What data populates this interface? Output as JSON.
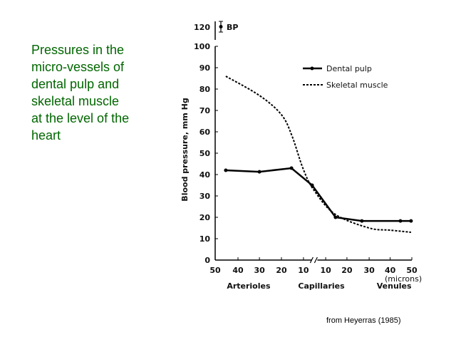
{
  "slide": {
    "title_lines": [
      "Pressures in the",
      "micro-vessels of",
      "dental pulp and",
      "skeletal muscle",
      "at the level of the",
      "heart"
    ],
    "title_color": "#006600",
    "source": "from Heyerras (1985)"
  },
  "chart_data": {
    "type": "line",
    "title": "Pressures in the micro-vessels of dental pulp and skeletal muscle at the level of the heart",
    "ylabel": "Blood pressure, mm Hg",
    "xlabel": "(microns)",
    "ylim": [
      0,
      100
    ],
    "yticks": [
      0,
      10,
      20,
      30,
      40,
      50,
      60,
      70,
      80,
      90,
      100
    ],
    "ybreak_tick": 120,
    "x_position_range": [
      0,
      10
    ],
    "xticks": [
      {
        "label": "50",
        "pos": 0
      },
      {
        "label": "40",
        "pos": 1.16
      },
      {
        "label": "30",
        "pos": 2.25
      },
      {
        "label": "20",
        "pos": 3.37
      },
      {
        "label": "10",
        "pos": 4.49
      },
      {
        "label": "10",
        "pos": 5.62
      },
      {
        "label": "20",
        "pos": 6.7
      },
      {
        "label": "30",
        "pos": 7.83
      },
      {
        "label": "40",
        "pos": 8.9
      },
      {
        "label": "50",
        "pos": 10
      }
    ],
    "x_break_pos": 5.05,
    "segments": [
      {
        "label": "Arterioles",
        "pos": 1.7
      },
      {
        "label": "Capillaries",
        "pos": 5.4
      },
      {
        "label": "Venules",
        "pos": 9.1
      }
    ],
    "bp_marker": {
      "label": "BP",
      "value": 120,
      "error": 5
    },
    "legend_position": "top-right",
    "series": [
      {
        "name": "Dental pulp",
        "style": "solid-markers",
        "color": "#000000",
        "x": [
          0.54,
          2.25,
          3.88,
          4.93,
          6.12,
          7.46,
          9.42,
          9.96
        ],
        "y": [
          42,
          41.3,
          43,
          35,
          20,
          18.3,
          18.3,
          18.3
        ]
      },
      {
        "name": "Skeletal muscle",
        "style": "dashed",
        "color": "#000000",
        "x": [
          0.54,
          2.25,
          3.37,
          3.91,
          4.46,
          5.0,
          6.09,
          7.83,
          8.88,
          9.96
        ],
        "y": [
          86,
          77,
          68,
          58,
          43,
          33,
          21.5,
          15,
          14,
          13
        ]
      }
    ]
  }
}
